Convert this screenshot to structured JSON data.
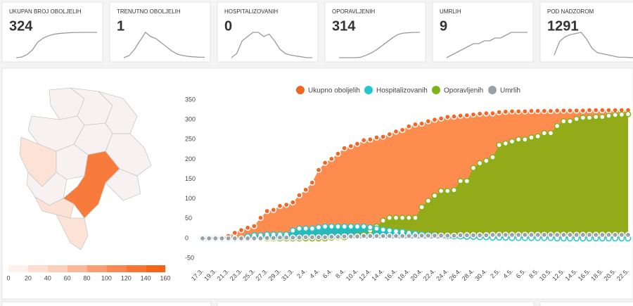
{
  "cards": [
    {
      "title": "UKUPAN BROJ OBOLJELIH",
      "value": 324,
      "trend": [
        2,
        10,
        40,
        100,
        200,
        250,
        280,
        300,
        310,
        315,
        320,
        322,
        323,
        324,
        324,
        324
      ]
    },
    {
      "title": "TRENUTNO OBOLJELIH",
      "value": 1,
      "trend": [
        0,
        5,
        20,
        40,
        60,
        50,
        45,
        35,
        25,
        15,
        8,
        5,
        3,
        2,
        1,
        1
      ]
    },
    {
      "title": "HOSPITALIZOVANIH",
      "value": 0,
      "trend": [
        0,
        5,
        20,
        25,
        30,
        30,
        25,
        28,
        20,
        10,
        5,
        3,
        2,
        1,
        0,
        0
      ]
    },
    {
      "title": "OPORAVLJENIH",
      "value": 314,
      "trend": [
        0,
        0,
        0,
        0,
        5,
        30,
        60,
        100,
        150,
        200,
        250,
        290,
        305,
        310,
        314,
        314
      ]
    },
    {
      "title": "UMRLIH",
      "value": 9,
      "trend": [
        0,
        1,
        2,
        3,
        4,
        5,
        5,
        6,
        6,
        7,
        7,
        8,
        9,
        9,
        9,
        9
      ]
    },
    {
      "title": "POD NADZOROM",
      "value": 1291,
      "trend": [
        200,
        800,
        1000,
        1100,
        1150,
        1200,
        900,
        500,
        300,
        250,
        200,
        150,
        100,
        100,
        90,
        80
      ]
    }
  ],
  "map_legend": {
    "ticks": [
      0,
      20,
      40,
      60,
      80,
      100,
      120,
      140,
      160
    ],
    "colors": [
      "#fdf1ec",
      "#fde0d3",
      "#fccfba",
      "#fbb797",
      "#fa9f74",
      "#f98852",
      "#f87435",
      "#f66419"
    ]
  },
  "chart_data": {
    "type": "area",
    "categories": [
      "17.3.",
      null,
      "19.3.",
      null,
      "21.3.",
      null,
      "23.3.",
      null,
      "25.3.",
      null,
      "27.3.",
      null,
      "29.3.",
      null,
      "31.3.",
      null,
      "2.4.",
      null,
      "4.4.",
      null,
      "6.4.",
      null,
      "8.4.",
      null,
      "10.4.",
      null,
      "12.4.",
      null,
      "14.4.",
      null,
      "16.4.",
      null,
      "18.4.",
      null,
      "20.4.",
      null,
      "22.4.",
      null,
      "24.4.",
      null,
      "26.4.",
      null,
      "28.4.",
      null,
      "30.4.",
      null,
      "2.5.",
      null,
      "4.5.",
      null,
      "6.5.",
      null,
      "8.5.",
      null,
      "10.5.",
      null,
      "12.5.",
      null,
      "14.5.",
      null,
      "16.5.",
      null,
      "18.5.",
      null,
      "20.5.",
      null,
      "22.5."
    ],
    "series": [
      {
        "name": "Ukupno oboljelih",
        "color": "#f26522",
        "area_color": "#fd8c4e",
        "values": [
          2,
          2,
          3,
          3,
          6,
          14,
          21,
          27,
          31,
          52,
          69,
          72,
          82,
          85,
          91,
          109,
          123,
          141,
          173,
          191,
          201,
          214,
          228,
          233,
          239,
          248,
          250,
          255,
          257,
          263,
          270,
          274,
          283,
          288,
          290,
          296,
          300,
          303,
          307,
          308,
          310,
          311,
          313,
          315,
          316,
          316,
          319,
          320,
          321,
          321,
          321,
          322,
          322,
          322,
          322,
          323,
          323,
          323,
          323,
          323,
          324,
          324,
          324,
          324,
          324,
          324,
          324
        ]
      },
      {
        "name": "Hospitalizovanih",
        "color": "#22c8cc",
        "area_color": "#2ab9b9",
        "values": [
          0,
          0,
          0,
          0,
          0,
          0,
          0,
          5,
          8,
          8,
          10,
          10,
          10,
          10,
          20,
          25,
          25,
          25,
          28,
          30,
          30,
          30,
          30,
          30,
          30,
          30,
          28,
          25,
          22,
          20,
          18,
          17,
          14,
          12,
          10,
          9,
          8,
          7,
          6,
          5,
          5,
          4,
          4,
          3,
          3,
          2,
          2,
          2,
          1,
          1,
          1,
          1,
          1,
          1,
          1,
          0,
          0,
          0,
          0,
          0,
          0,
          0,
          0,
          0,
          0,
          0,
          0
        ]
      },
      {
        "name": "Oporavljenih",
        "color": "#7cb518",
        "area_color": "#93ab18",
        "values": [
          0,
          0,
          0,
          0,
          0,
          0,
          0,
          0,
          0,
          0,
          0,
          0,
          0,
          0,
          0,
          0,
          0,
          0,
          0,
          0,
          2,
          3,
          3,
          5,
          7,
          9,
          20,
          30,
          45,
          52,
          52,
          52,
          52,
          52,
          79,
          95,
          108,
          120,
          120,
          122,
          145,
          145,
          178,
          190,
          196,
          205,
          236,
          240,
          245,
          250,
          250,
          255,
          258,
          266,
          266,
          284,
          296,
          296,
          302,
          305,
          305,
          307,
          307,
          310,
          312,
          313,
          314
        ]
      },
      {
        "name": "Umrlih",
        "color": "#9aa0a8",
        "area_color": "#b3b7bd",
        "values": [
          0,
          0,
          0,
          0,
          0,
          0,
          0,
          0,
          0,
          0,
          1,
          1,
          2,
          2,
          2,
          2,
          3,
          3,
          3,
          3,
          4,
          4,
          5,
          5,
          5,
          6,
          6,
          6,
          6,
          6,
          6,
          6,
          6,
          7,
          7,
          7,
          7,
          7,
          7,
          7,
          8,
          8,
          8,
          8,
          8,
          9,
          9,
          9,
          9,
          9,
          9,
          9,
          9,
          9,
          9,
          9,
          9,
          9,
          9,
          9,
          9,
          9,
          9,
          9,
          9,
          9,
          9
        ]
      }
    ],
    "ylim": [
      -50,
      350
    ],
    "yticks": [
      -50,
      0,
      50,
      100,
      150,
      200,
      250,
      300,
      350
    ],
    "grid": false,
    "legend": "top"
  }
}
